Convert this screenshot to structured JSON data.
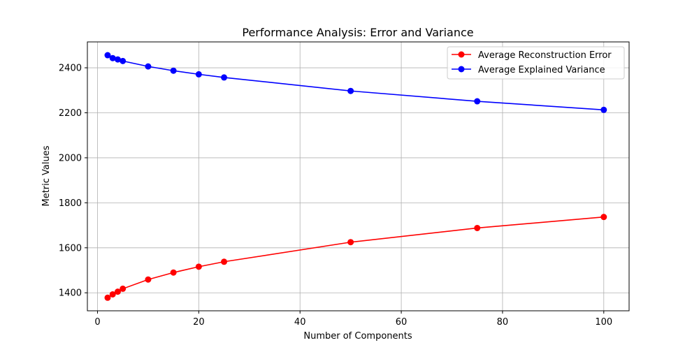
{
  "chart_data": {
    "type": "line",
    "title": "Performance Analysis: Error and Variance",
    "xlabel": "Number of Components",
    "ylabel": "Metric Values",
    "xlim": [
      -2,
      105
    ],
    "ylim": [
      1320,
      2515
    ],
    "xticks": [
      0,
      20,
      40,
      60,
      80,
      100
    ],
    "yticks": [
      1400,
      1600,
      1800,
      2000,
      2200,
      2400
    ],
    "grid": true,
    "legend_position": "top-right",
    "x": [
      2,
      3,
      4,
      5,
      10,
      15,
      20,
      25,
      50,
      75,
      100
    ],
    "series": [
      {
        "name": "Average Reconstruction Error",
        "color": "#ff0000",
        "marker": "circle",
        "values": [
          1378,
          1393,
          1405,
          1418,
          1459,
          1490,
          1516,
          1538,
          1625,
          1688,
          1737
        ]
      },
      {
        "name": "Average Explained Variance",
        "color": "#0000ff",
        "marker": "circle",
        "values": [
          2456,
          2443,
          2437,
          2430,
          2406,
          2387,
          2371,
          2357,
          2297,
          2251,
          2213
        ]
      }
    ]
  }
}
